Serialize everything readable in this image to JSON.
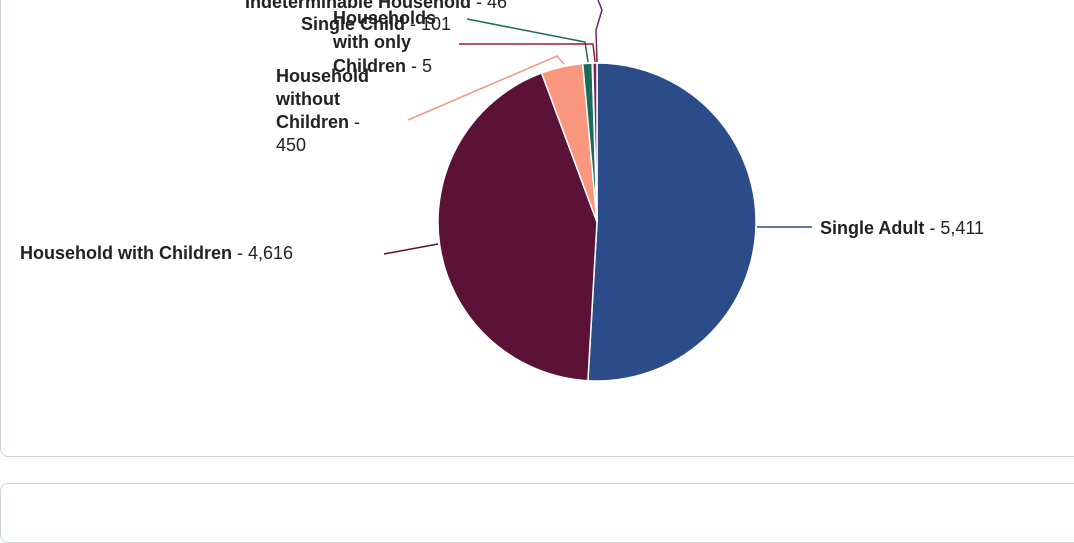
{
  "chart_data": {
    "type": "pie",
    "slices": [
      {
        "label": "Single Adult",
        "value": 5411,
        "display": "5,411",
        "color": "#2b4c89"
      },
      {
        "label": "Household with Children",
        "value": 4616,
        "display": "4,616",
        "color": "#5c1237"
      },
      {
        "label": "Household without Children",
        "value": 450,
        "display": "450",
        "color": "#f8977d"
      },
      {
        "label": "Single Child",
        "value": 101,
        "display": "101",
        "color": "#1a6b58"
      },
      {
        "label": "Households with only Children",
        "value": 5,
        "display": "5",
        "color": "#9b1c2c"
      },
      {
        "label": "Indeterminable Household",
        "value": 46,
        "display": "46",
        "color": "#6b2a5e"
      }
    ]
  }
}
